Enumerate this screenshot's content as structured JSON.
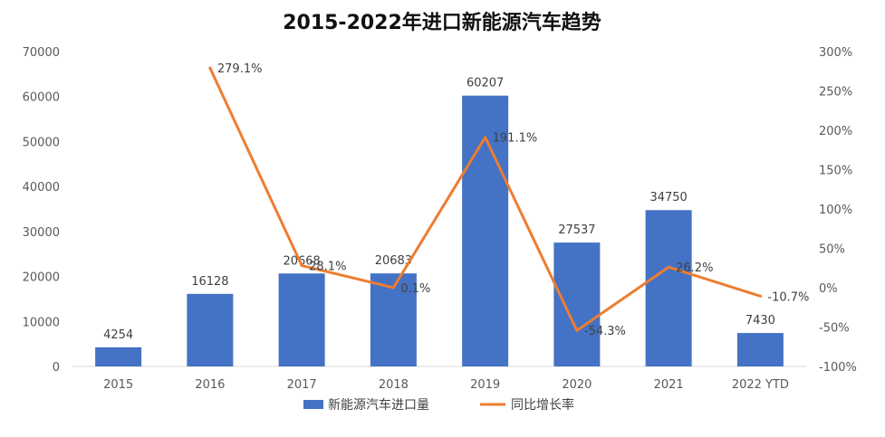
{
  "chart_data": {
    "type": "bar+line",
    "title": "2015-2022年进口新能源汽车趋势",
    "categories": [
      "2015",
      "2016",
      "2017",
      "2018",
      "2019",
      "2020",
      "2021",
      "2022 YTD"
    ],
    "series": [
      {
        "name": "新能源汽车进口量",
        "type": "bar",
        "axis": "left",
        "color": "#4472C4",
        "values": [
          4254,
          16128,
          20668,
          20683,
          60207,
          27537,
          34750,
          7430
        ],
        "labels": [
          "4254",
          "16128",
          "20668",
          "20683",
          "60207",
          "27537",
          "34750",
          "7430"
        ]
      },
      {
        "name": "同比增长率",
        "type": "line",
        "axis": "right",
        "color": "#ED7D31",
        "values": [
          null,
          279.1,
          28.1,
          0.1,
          191.1,
          -54.3,
          26.2,
          -10.7
        ],
        "labels": [
          null,
          "279.1%",
          "28.1%",
          "0.1%",
          "191.1%",
          "-54.3%",
          "26.2%",
          "-10.7%"
        ]
      }
    ],
    "left_axis": {
      "min": 0,
      "max": 70000,
      "ticks": [
        "0",
        "10000",
        "20000",
        "30000",
        "40000",
        "50000",
        "60000",
        "70000"
      ]
    },
    "right_axis": {
      "min": -100,
      "max": 300,
      "ticks": [
        "-100%",
        "-50%",
        "0%",
        "50%",
        "100%",
        "150%",
        "200%",
        "250%",
        "300%"
      ]
    },
    "grid": false,
    "legend_position": "bottom"
  }
}
